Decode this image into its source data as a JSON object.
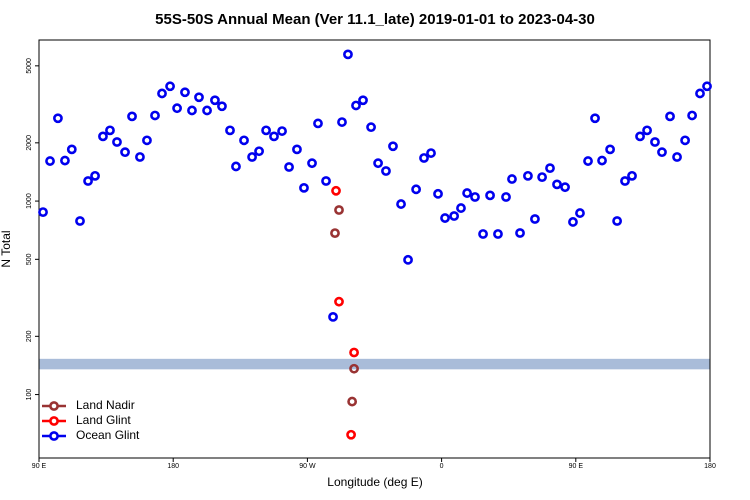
{
  "chart_data": {
    "type": "scatter",
    "title": "55S-50S Annual Mean (Ver 11.1_late)   2019-01-01 to 2023-04-30",
    "x_label": "Longitude (deg E)",
    "y_label": "N Total",
    "log_y": true,
    "legend": "lower left",
    "xlim": [
      90,
      540
    ],
    "ylim": [
      47,
      6800
    ],
    "xticks": [
      {
        "value": 90,
        "label": "90 E"
      },
      {
        "value": 180,
        "label": "180"
      },
      {
        "value": 270,
        "label": "90 W"
      },
      {
        "value": 360,
        "label": "0"
      },
      {
        "value": 450,
        "label": "90 E"
      },
      {
        "value": 540,
        "label": "180"
      }
    ],
    "yticks": [
      100,
      200,
      500,
      1000,
      2000,
      5000
    ],
    "band": [
      135,
      153
    ],
    "band_color": "#a9bcd9",
    "series": [
      {
        "name": "Land Nadir",
        "color": "#993333",
        "x": [
          288.5,
          291.2,
          301.3,
          300.0
        ],
        "values": [
          683,
          899,
          136,
          92
        ]
      },
      {
        "name": "Land Glint",
        "color": "#ff0000",
        "x": [
          289.2,
          291.2,
          301.3,
          299.3
        ],
        "values": [
          1130,
          302,
          165,
          62
        ]
      },
      {
        "name": "Ocean Glint",
        "color": "#0000ee",
        "x": [
          92.7,
          97.4,
          102.7,
          107.4,
          112.0,
          117.5,
          122.9,
          127.6,
          132.9,
          137.6,
          142.3,
          147.7,
          152.4,
          157.7,
          162.4,
          167.8,
          172.5,
          177.9,
          182.6,
          187.9,
          192.6,
          197.3,
          202.7,
          208.0,
          212.7,
          218.1,
          222.1,
          227.5,
          232.9,
          237.6,
          242.3,
          247.6,
          253.0,
          257.7,
          263.0,
          267.7,
          273.1,
          277.1,
          282.5,
          287.2,
          293.2,
          297.2,
          302.6,
          307.3,
          312.7,
          317.4,
          322.7,
          327.4,
          332.8,
          337.5,
          342.9,
          348.2,
          352.9,
          357.6,
          362.3,
          368.4,
          373.0,
          377.1,
          382.4,
          387.8,
          392.5,
          397.8,
          403.2,
          407.2,
          412.6,
          417.9,
          422.6,
          427.4,
          432.7,
          437.4,
          442.8,
          448.1,
          452.8,
          458.2,
          462.9,
          467.6,
          473.0,
          477.7,
          483.0,
          487.7,
          493.1,
          497.8,
          503.1,
          507.8,
          513.2,
          517.9,
          523.3,
          528.0,
          533.3,
          538.0
        ],
        "values": [
          877,
          1610,
          2680,
          1620,
          1850,
          789,
          1270,
          1350,
          2160,
          2320,
          2020,
          1790,
          2740,
          1690,
          2060,
          2770,
          3600,
          3920,
          3020,
          3650,
          2940,
          3440,
          2940,
          3320,
          3090,
          2320,
          1510,
          2060,
          1690,
          1810,
          2320,
          2160,
          2300,
          1500,
          1850,
          1170,
          1570,
          2520,
          1270,
          252,
          2560,
          5730,
          3120,
          3320,
          2410,
          1570,
          1430,
          1920,
          965,
          497,
          1150,
          1670,
          1770,
          1090,
          817,
          837,
          920,
          1100,
          1050,
          676,
          1070,
          676,
          1050,
          1300,
          684,
          1350,
          808,
          1330,
          1480,
          1220,
          1180,
          780,
          867,
          1610,
          2680,
          1620,
          1850,
          789,
          1270,
          1350,
          2160,
          2320,
          2020,
          1790,
          2740,
          1690,
          2060,
          2770,
          3600,
          3920
        ]
      }
    ]
  }
}
